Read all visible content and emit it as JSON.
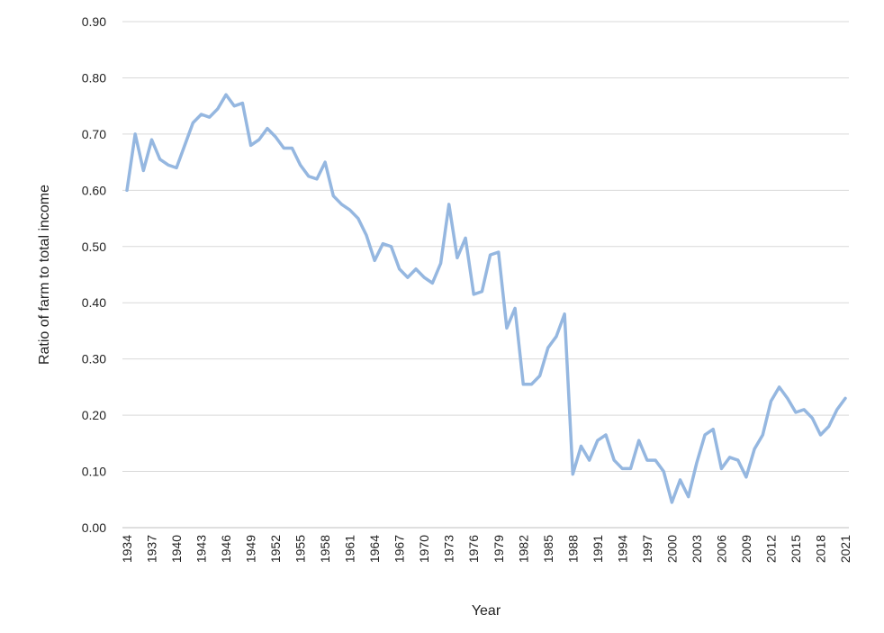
{
  "chart_data": {
    "type": "line",
    "x_label": "Year",
    "y_label": "Ratio of farm to total income",
    "categories": [
      "1934",
      null,
      null,
      "1937",
      null,
      null,
      "1940",
      null,
      null,
      "1943",
      null,
      null,
      "1946",
      null,
      null,
      "1949",
      null,
      null,
      "1952",
      null,
      null,
      "1955",
      null,
      null,
      "1958",
      null,
      null,
      "1961",
      null,
      null,
      "1964",
      null,
      null,
      "1967",
      null,
      null,
      "1970",
      null,
      null,
      "1973",
      null,
      null,
      "1976",
      null,
      null,
      "1979",
      null,
      null,
      "1982",
      null,
      null,
      "1985",
      null,
      null,
      "1988",
      null,
      null,
      "1991",
      null,
      null,
      "1994",
      null,
      null,
      "1997",
      null,
      null,
      "2000",
      null,
      null,
      "2003",
      null,
      null,
      "2006",
      null,
      null,
      "2009",
      null,
      null,
      "2012",
      null,
      null,
      "2015",
      null,
      null,
      "2018",
      null,
      null,
      "2021"
    ],
    "values": [
      0.6,
      0.7,
      0.635,
      0.69,
      0.655,
      0.645,
      0.64,
      0.68,
      0.72,
      0.735,
      0.73,
      0.745,
      0.77,
      0.75,
      0.755,
      0.68,
      0.69,
      0.71,
      0.695,
      0.675,
      0.675,
      0.645,
      0.625,
      0.62,
      0.65,
      0.59,
      0.575,
      0.565,
      0.55,
      0.52,
      0.475,
      0.505,
      0.5,
      0.46,
      0.445,
      0.46,
      0.445,
      0.435,
      0.47,
      0.575,
      0.48,
      0.515,
      0.415,
      0.42,
      0.485,
      0.49,
      0.355,
      0.39,
      0.255,
      0.255,
      0.27,
      0.32,
      0.34,
      0.38,
      0.095,
      0.145,
      0.12,
      0.155,
      0.165,
      0.12,
      0.105,
      0.105,
      0.155,
      0.12,
      0.12,
      0.1,
      0.045,
      0.085,
      0.055,
      0.115,
      0.165,
      0.175,
      0.105,
      0.125,
      0.12,
      0.09,
      0.14,
      0.165,
      0.225,
      0.25,
      0.23,
      0.205,
      0.21,
      0.195,
      0.165,
      0.18,
      0.21,
      0.23
    ],
    "color": "#95b7e0",
    "ylim": [
      0,
      0.9
    ],
    "yticks": [
      {
        "value": 0,
        "label": "0.00"
      },
      {
        "value": 0.1,
        "label": "0.10"
      },
      {
        "value": 0.2,
        "label": "0.20"
      },
      {
        "value": 0.3,
        "label": "0.30"
      },
      {
        "value": 0.4,
        "label": "0.40"
      },
      {
        "value": 0.5,
        "label": "0.50"
      },
      {
        "value": 0.6,
        "label": "0.60"
      },
      {
        "value": 0.7,
        "label": "0.70"
      },
      {
        "value": 0.8,
        "label": "0.80"
      },
      {
        "value": 0.9,
        "label": "0.90"
      }
    ],
    "grid": true
  }
}
